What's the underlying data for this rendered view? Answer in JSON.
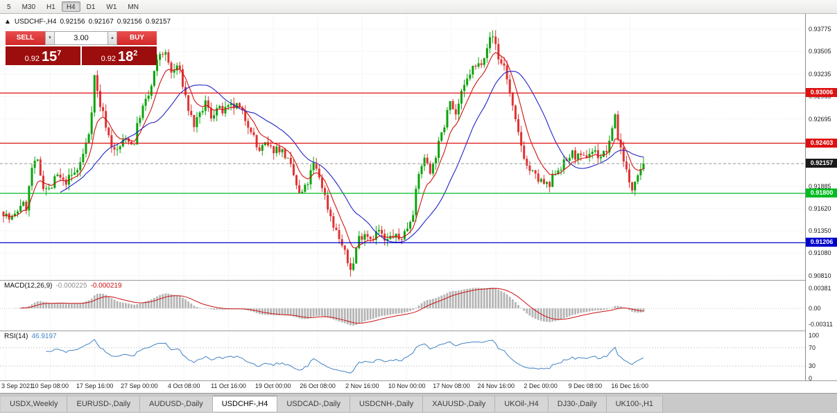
{
  "toolbar": {
    "timeframes": [
      "5",
      "M30",
      "H1",
      "H4",
      "D1",
      "W1",
      "MN"
    ],
    "active_timeframe": "H4"
  },
  "chart": {
    "collapse_icon": "▲",
    "title": "USDCHF-,H4",
    "ohlc": {
      "open": "0.92156",
      "high": "0.92167",
      "low": "0.92156",
      "close": "0.92157"
    }
  },
  "trade_panel": {
    "sell_label": "SELL",
    "buy_label": "BUY",
    "volume": "3.00",
    "volume_up_icon": "▲",
    "volume_down_icon": "▼",
    "sell_price": {
      "prefix": "0.92",
      "pips": "15",
      "point": "7"
    },
    "buy_price": {
      "prefix": "0.92",
      "pips": "18",
      "point": "2"
    }
  },
  "price_axis": {
    "ticks": [
      "0.93775",
      "0.93505",
      "0.93235",
      "0.92965",
      "0.92695",
      "0.92425",
      "0.92155",
      "0.91885",
      "0.91620",
      "0.91350",
      "0.91080",
      "0.90810"
    ],
    "badges": [
      {
        "value": "0.93006",
        "color": "#dd1111"
      },
      {
        "value": "0.92403",
        "color": "#dd1111"
      },
      {
        "value": "0.92157",
        "color": "#1a1a1a"
      },
      {
        "value": "0.91800",
        "color": "#00bb22"
      },
      {
        "value": "0.91206",
        "color": "#0000cc"
      }
    ]
  },
  "levels": [
    {
      "price": 0.93006,
      "color": "#dd1111"
    },
    {
      "price": 0.92403,
      "color": "#dd1111"
    },
    {
      "price": 0.918,
      "color": "#00bb22"
    },
    {
      "price": 0.91206,
      "color": "#0000cc"
    }
  ],
  "current_price": {
    "value": 0.92157
  },
  "macd": {
    "name": "MACD(12,26,9)",
    "main_value": "-0.000225",
    "signal_value": "-0.000219",
    "axis": [
      "0.00381",
      "0.00",
      "-0.00311"
    ]
  },
  "rsi": {
    "name": "RSI(14)",
    "value": "46.9197",
    "axis": [
      "100",
      "70",
      "30",
      "0"
    ],
    "levels": [
      70,
      30
    ]
  },
  "time_axis": [
    "3 Sep 2021",
    "10 Sep 08:00",
    "17 Sep 16:00",
    "27 Sep 00:00",
    "4 Oct 08:00",
    "11 Oct 16:00",
    "19 Oct 00:00",
    "26 Oct 08:00",
    "2 Nov 16:00",
    "10 Nov 00:00",
    "17 Nov 08:00",
    "24 Nov 16:00",
    "2 Dec 00:00",
    "9 Dec 08:00",
    "16 Dec 16:00"
  ],
  "tabs": [
    {
      "label": "USDX,Weekly",
      "active": false
    },
    {
      "label": "EURUSD-,Daily",
      "active": false
    },
    {
      "label": "AUDUSD-,Daily",
      "active": false
    },
    {
      "label": "USDCHF-,H4",
      "active": true
    },
    {
      "label": "USDCAD-,Daily",
      "active": false
    },
    {
      "label": "USDCNH-,Daily",
      "active": false
    },
    {
      "label": "XAUUSD-,Daily",
      "active": false
    },
    {
      "label": "UKOil-,H4",
      "active": false
    },
    {
      "label": "DJ30-,Daily",
      "active": false
    },
    {
      "label": "UK100-,H1",
      "active": false
    }
  ],
  "chart_data": {
    "type": "candlestick",
    "symbol": "USDCHF-",
    "timeframe": "H4",
    "candle_count": 226,
    "visible_range": {
      "start": "3 Sep 2021",
      "end": "16 Dec 2021"
    },
    "last_close": 0.92157,
    "indicators": {
      "ma_fast": 8,
      "ma_slow": 21,
      "macd": [
        12,
        26,
        9
      ],
      "rsi": 14
    },
    "colors": {
      "up": "#0ba30b",
      "down": "#e03232",
      "ma_fast": "#d01010",
      "ma_slow": "#2020c8",
      "macd_hist": "#b5b5b5",
      "macd_signal": "#cc1111",
      "rsi_line": "#4182c3"
    },
    "price_waypoints": [
      [
        5,
        0.9158
      ],
      [
        14,
        0.9148
      ],
      [
        22,
        0.9153
      ],
      [
        30,
        0.9168
      ],
      [
        38,
        0.9163
      ],
      [
        46,
        0.921
      ],
      [
        54,
        0.9218
      ],
      [
        62,
        0.919
      ],
      [
        72,
        0.9183
      ],
      [
        82,
        0.9202
      ],
      [
        92,
        0.9192
      ],
      [
        102,
        0.92
      ],
      [
        112,
        0.9208
      ],
      [
        122,
        0.9232
      ],
      [
        130,
        0.926
      ],
      [
        136,
        0.9322
      ],
      [
        143,
        0.929
      ],
      [
        150,
        0.9272
      ],
      [
        158,
        0.9245
      ],
      [
        166,
        0.9228
      ],
      [
        176,
        0.924
      ],
      [
        184,
        0.9248
      ],
      [
        192,
        0.9235
      ],
      [
        200,
        0.927
      ],
      [
        208,
        0.9287
      ],
      [
        216,
        0.93
      ],
      [
        224,
        0.933
      ],
      [
        232,
        0.9352
      ],
      [
        240,
        0.9345
      ],
      [
        248,
        0.9322
      ],
      [
        256,
        0.9335
      ],
      [
        264,
        0.931
      ],
      [
        272,
        0.928
      ],
      [
        280,
        0.9262
      ],
      [
        288,
        0.9272
      ],
      [
        296,
        0.929
      ],
      [
        304,
        0.9272
      ],
      [
        312,
        0.9282
      ],
      [
        322,
        0.9278
      ],
      [
        332,
        0.9283
      ],
      [
        342,
        0.9285
      ],
      [
        352,
        0.9272
      ],
      [
        362,
        0.9258
      ],
      [
        372,
        0.923
      ],
      [
        382,
        0.9238
      ],
      [
        392,
        0.9232
      ],
      [
        402,
        0.9235
      ],
      [
        412,
        0.9225
      ],
      [
        422,
        0.9205
      ],
      [
        432,
        0.9177
      ],
      [
        442,
        0.9188
      ],
      [
        452,
        0.9215
      ],
      [
        462,
        0.9197
      ],
      [
        472,
        0.9165
      ],
      [
        482,
        0.914
      ],
      [
        492,
        0.912
      ],
      [
        502,
        0.9095
      ],
      [
        508,
        0.9088
      ],
      [
        516,
        0.9125
      ],
      [
        526,
        0.9133
      ],
      [
        536,
        0.9126
      ],
      [
        546,
        0.9136
      ],
      [
        556,
        0.912
      ],
      [
        566,
        0.913
      ],
      [
        576,
        0.9124
      ],
      [
        586,
        0.9136
      ],
      [
        596,
        0.916
      ],
      [
        606,
        0.9213
      ],
      [
        614,
        0.9222
      ],
      [
        622,
        0.9205
      ],
      [
        630,
        0.9232
      ],
      [
        640,
        0.9258
      ],
      [
        648,
        0.93
      ],
      [
        656,
        0.9272
      ],
      [
        664,
        0.9295
      ],
      [
        672,
        0.9312
      ],
      [
        680,
        0.933
      ],
      [
        688,
        0.9332
      ],
      [
        696,
        0.9342
      ],
      [
        704,
        0.9362
      ],
      [
        712,
        0.937
      ],
      [
        720,
        0.9338
      ],
      [
        728,
        0.9333
      ],
      [
        736,
        0.9296
      ],
      [
        744,
        0.9262
      ],
      [
        752,
        0.9237
      ],
      [
        760,
        0.9212
      ],
      [
        768,
        0.9204
      ],
      [
        776,
        0.9196
      ],
      [
        784,
        0.9192
      ],
      [
        792,
        0.9186
      ],
      [
        800,
        0.9206
      ],
      [
        808,
        0.9212
      ],
      [
        816,
        0.9218
      ],
      [
        824,
        0.9228
      ],
      [
        832,
        0.9224
      ],
      [
        840,
        0.922
      ],
      [
        848,
        0.9228
      ],
      [
        856,
        0.9232
      ],
      [
        864,
        0.9224
      ],
      [
        872,
        0.9228
      ],
      [
        880,
        0.924
      ],
      [
        886,
        0.9282
      ],
      [
        892,
        0.924
      ],
      [
        898,
        0.9228
      ],
      [
        904,
        0.9204
      ],
      [
        910,
        0.918
      ],
      [
        916,
        0.92
      ],
      [
        922,
        0.921
      ],
      [
        928,
        0.92157
      ]
    ]
  }
}
